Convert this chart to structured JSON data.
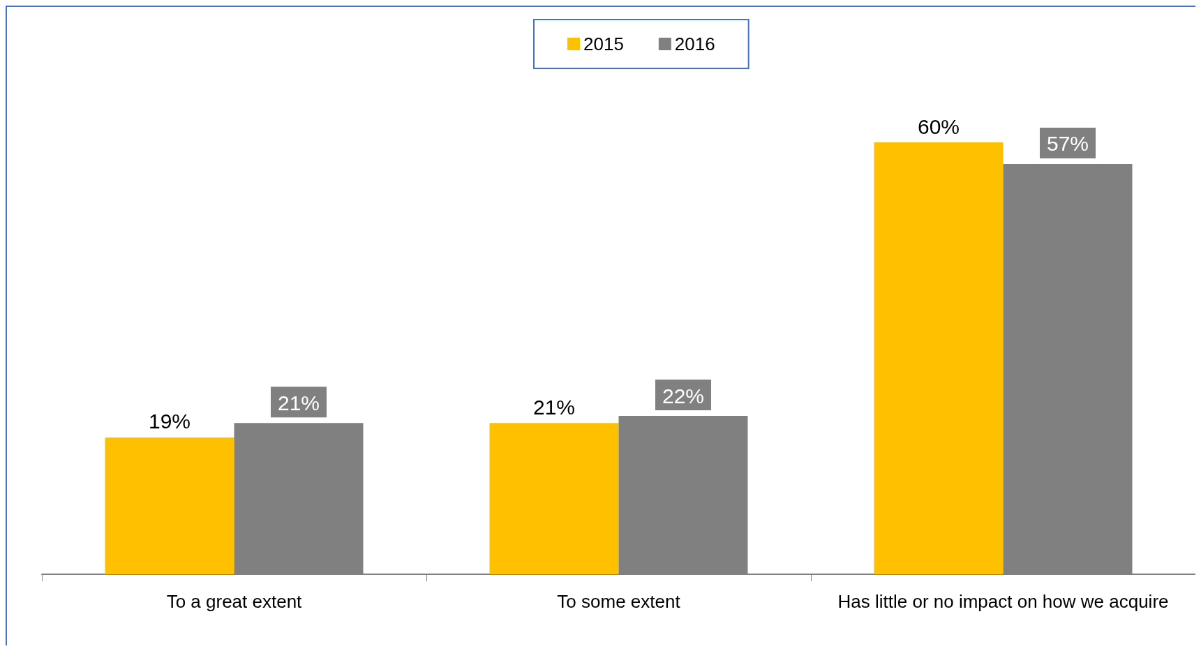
{
  "chart_data": {
    "type": "bar",
    "categories": [
      "To a great extent",
      "To some extent",
      "Has little or no impact on how we acquire"
    ],
    "series": [
      {
        "name": "2015",
        "color": "#ffc000",
        "values": [
          19,
          21,
          60
        ],
        "value_labels": [
          "19%",
          "21%",
          "60%"
        ]
      },
      {
        "name": "2016",
        "color": "#808080",
        "values": [
          21,
          22,
          57
        ],
        "value_labels": [
          "21%",
          "22%",
          "57%"
        ]
      }
    ],
    "legend": "top"
  }
}
